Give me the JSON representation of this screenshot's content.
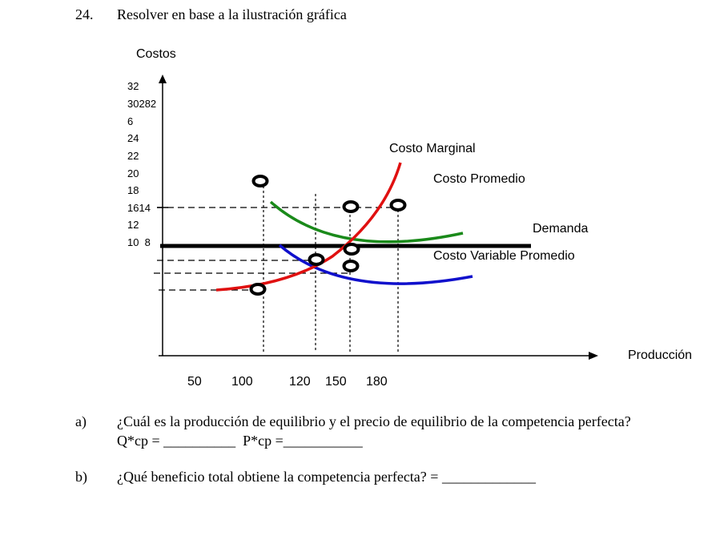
{
  "problem": {
    "number": "24.",
    "instruction": "Resolver en base a la ilustración gráfica"
  },
  "figure": {
    "y_axis_title": "Costos",
    "x_axis_title": "Producción",
    "y_tick_labels": [
      "32",
      "30282",
      "6",
      "24",
      "22",
      "20",
      "18",
      "1614",
      "12",
      "10  8"
    ],
    "x_tick_labels": [
      "50",
      "100",
      "120",
      "150",
      "180"
    ],
    "curve_labels": {
      "marginal": "Costo Marginal",
      "average": "Costo Promedio",
      "demand": "Demanda",
      "avg_variable": "Costo Variable Promedio"
    },
    "colors": {
      "marginal": "#e01010",
      "average": "#1a8a1a",
      "avg_variable": "#1010cc",
      "demand": "#000000"
    }
  },
  "questions": [
    {
      "letter": "a)",
      "text": "¿Cuál es la producción de equilibrio y el precio de equilibrio de la competencia perfecta?",
      "answer_line": "Q*cp = __________  P*cp =___________"
    },
    {
      "letter": "b)",
      "text": "¿Qué beneficio total obtiene la competencia perfecta? = _____________"
    }
  ]
}
